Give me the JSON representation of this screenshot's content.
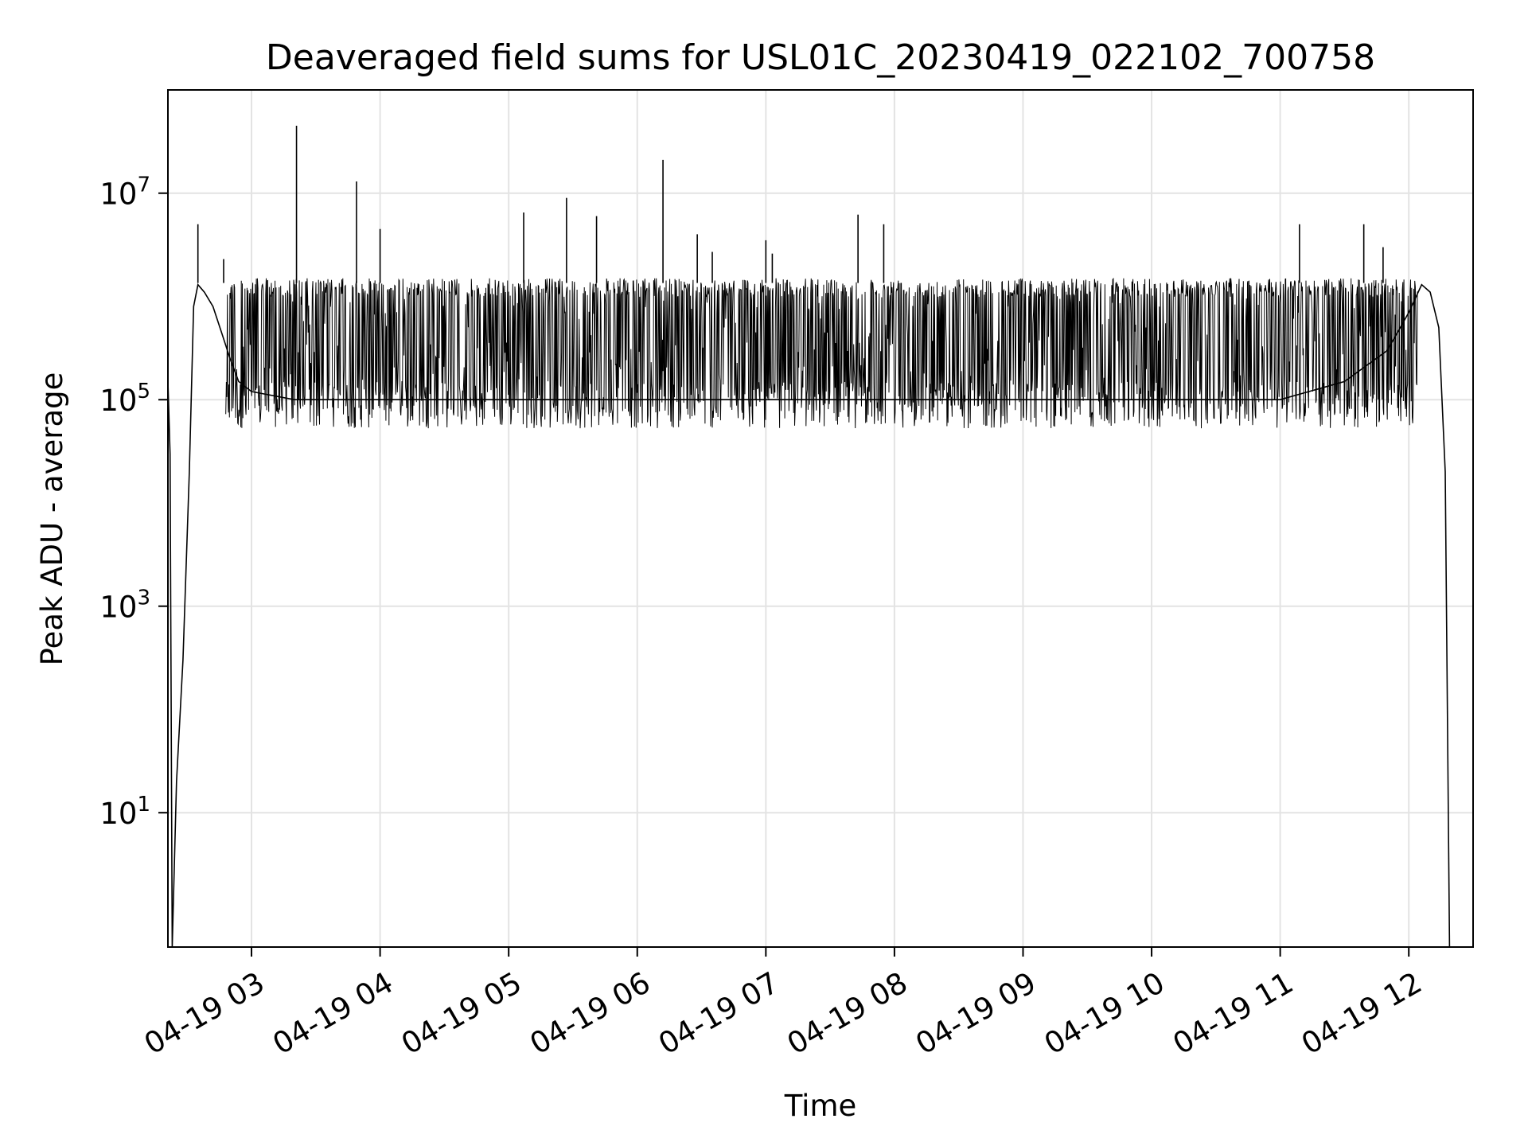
{
  "chart_data": {
    "type": "line",
    "title": "Deaveraged field sums for USL01C_20230419_022102_700758",
    "xlabel": "Time",
    "ylabel": "Peak ADU - average",
    "yscale": "log",
    "ylim": [
      0.5,
      100000000
    ],
    "xlim": [
      "04-19 02:21",
      "04-19 12:30"
    ],
    "grid": true,
    "line_color": "#000000",
    "x_ticks": [
      "04-19 03",
      "04-19 04",
      "04-19 05",
      "04-19 06",
      "04-19 07",
      "04-19 08",
      "04-19 09",
      "04-19 10",
      "04-19 11",
      "04-19 12"
    ],
    "y_ticks": [
      {
        "value": 10,
        "base": "10",
        "exp": "1"
      },
      {
        "value": 1000,
        "base": "10",
        "exp": "3"
      },
      {
        "value": 100000,
        "base": "10",
        "exp": "5"
      },
      {
        "value": 10000000,
        "base": "10",
        "exp": "7"
      }
    ],
    "series": [
      {
        "x": [
          "04-19 02:21",
          "04-19 02:22",
          "04-19 02:23",
          "04-19 02:25",
          "04-19 02:28",
          "04-19 02:31",
          "04-19 02:33",
          "04-19 02:35",
          "04-19 02:38",
          "04-19 02:42",
          "04-19 02:46",
          "04-19 02:50",
          "04-19 02:54",
          "04-19 03:00",
          "04-19 03:20",
          "04-19 03:40",
          "04-19 04:00",
          "04-19 05:00",
          "04-19 06:00",
          "04-19 07:00",
          "04-19 08:00",
          "04-19 09:00",
          "04-19 10:00",
          "04-19 11:00",
          "04-19 11:30",
          "04-19 11:50",
          "04-19 12:00",
          "04-19 12:06",
          "04-19 12:10",
          "04-19 12:14",
          "04-19 12:17",
          "04-19 12:19"
        ],
        "y": [
          150000,
          30000,
          0.5,
          20,
          300,
          20000,
          800000,
          1300000,
          1100000,
          800000,
          450000,
          250000,
          150000,
          120000,
          100000,
          100000,
          100000,
          100000,
          100000,
          100000,
          100000,
          100000,
          100000,
          100000,
          150000,
          300000,
          700000,
          1300000,
          1100000,
          500000,
          20000,
          0.5
        ]
      }
    ],
    "band": {
      "from": "04-19 02:48",
      "to": "04-19 12:04",
      "low": 80000,
      "high": 1500000
    },
    "spikes": [
      {
        "x": "04-19 02:35",
        "y": 5000000
      },
      {
        "x": "04-19 02:47",
        "y": 2300000
      },
      {
        "x": "04-19 03:21",
        "y": 45000000
      },
      {
        "x": "04-19 03:49",
        "y": 13000000
      },
      {
        "x": "04-19 04:00",
        "y": 4500000
      },
      {
        "x": "04-19 05:07",
        "y": 6500000
      },
      {
        "x": "04-19 05:27",
        "y": 9000000
      },
      {
        "x": "04-19 05:41",
        "y": 6000000
      },
      {
        "x": "04-19 06:12",
        "y": 21000000
      },
      {
        "x": "04-19 06:28",
        "y": 4000000
      },
      {
        "x": "04-19 06:35",
        "y": 2700000
      },
      {
        "x": "04-19 07:00",
        "y": 3500000
      },
      {
        "x": "04-19 07:03",
        "y": 2600000
      },
      {
        "x": "04-19 07:43",
        "y": 6200000
      },
      {
        "x": "04-19 07:55",
        "y": 5000000
      },
      {
        "x": "04-19 11:09",
        "y": 5000000
      },
      {
        "x": "04-19 11:39",
        "y": 5000000
      },
      {
        "x": "04-19 11:48",
        "y": 3000000
      }
    ]
  }
}
